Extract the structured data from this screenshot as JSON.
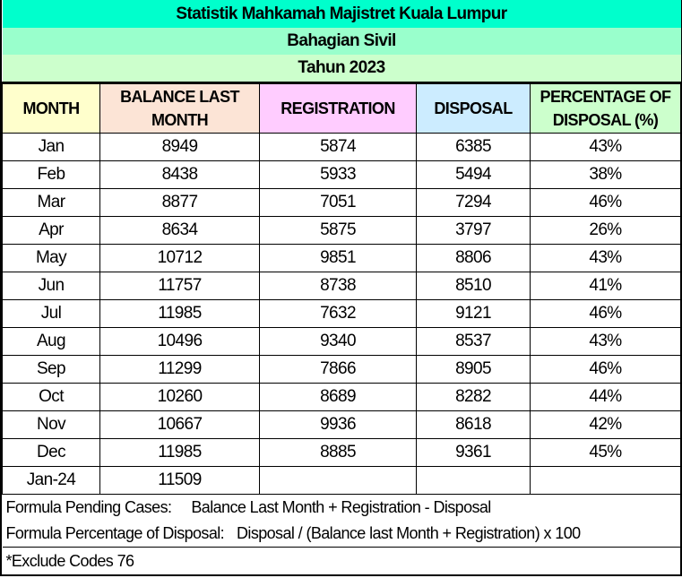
{
  "title": "Statistik Mahkamah Majistret Kuala Lumpur",
  "subtitle": "Bahagian Sivil",
  "year": "Tahun 2023",
  "colors": {
    "title_bg": "#00ffcc",
    "subtitle_bg": "#99ffcc",
    "year_bg": "#ccffcc",
    "month_bg": "#ffffcc",
    "balance_bg": "#fce4d6",
    "registration_bg": "#ffccff",
    "disposal_bg": "#ccecff",
    "percentage_bg": "#ccffcc"
  },
  "headers": [
    "MONTH",
    "BALANCE LAST MONTH",
    "REGISTRATION",
    "DISPOSAL",
    "PERCENTAGE OF DISPOSAL (%)"
  ],
  "rows": [
    [
      "Jan",
      "8949",
      "5874",
      "6385",
      "43%"
    ],
    [
      "Feb",
      "8438",
      "5933",
      "5494",
      "38%"
    ],
    [
      "Mar",
      "8877",
      "7051",
      "7294",
      "46%"
    ],
    [
      "Apr",
      "8634",
      "5875",
      "3797",
      "26%"
    ],
    [
      "May",
      "10712",
      "9851",
      "8806",
      "43%"
    ],
    [
      "Jun",
      "11757",
      "8738",
      "8510",
      "41%"
    ],
    [
      "Jul",
      "11985",
      "7632",
      "9121",
      "46%"
    ],
    [
      "Aug",
      "10496",
      "9340",
      "8537",
      "43%"
    ],
    [
      "Sep",
      "11299",
      "7866",
      "8905",
      "46%"
    ],
    [
      "Oct",
      "10260",
      "8689",
      "8282",
      "44%"
    ],
    [
      "Nov",
      "10667",
      "9936",
      "8618",
      "42%"
    ],
    [
      "Dec",
      "11985",
      "8885",
      "9361",
      "45%"
    ],
    [
      "Jan-24",
      "11509",
      "",
      "",
      ""
    ]
  ],
  "formulas": [
    {
      "label": "Formula Pending Cases:",
      "value": "Balance Last Month + Registration - Disposal"
    },
    {
      "label": "Formula Percentage of Disposal:",
      "value": "Disposal / (Balance last Month + Registration) x 100"
    }
  ],
  "note": "*Exclude Codes 76"
}
